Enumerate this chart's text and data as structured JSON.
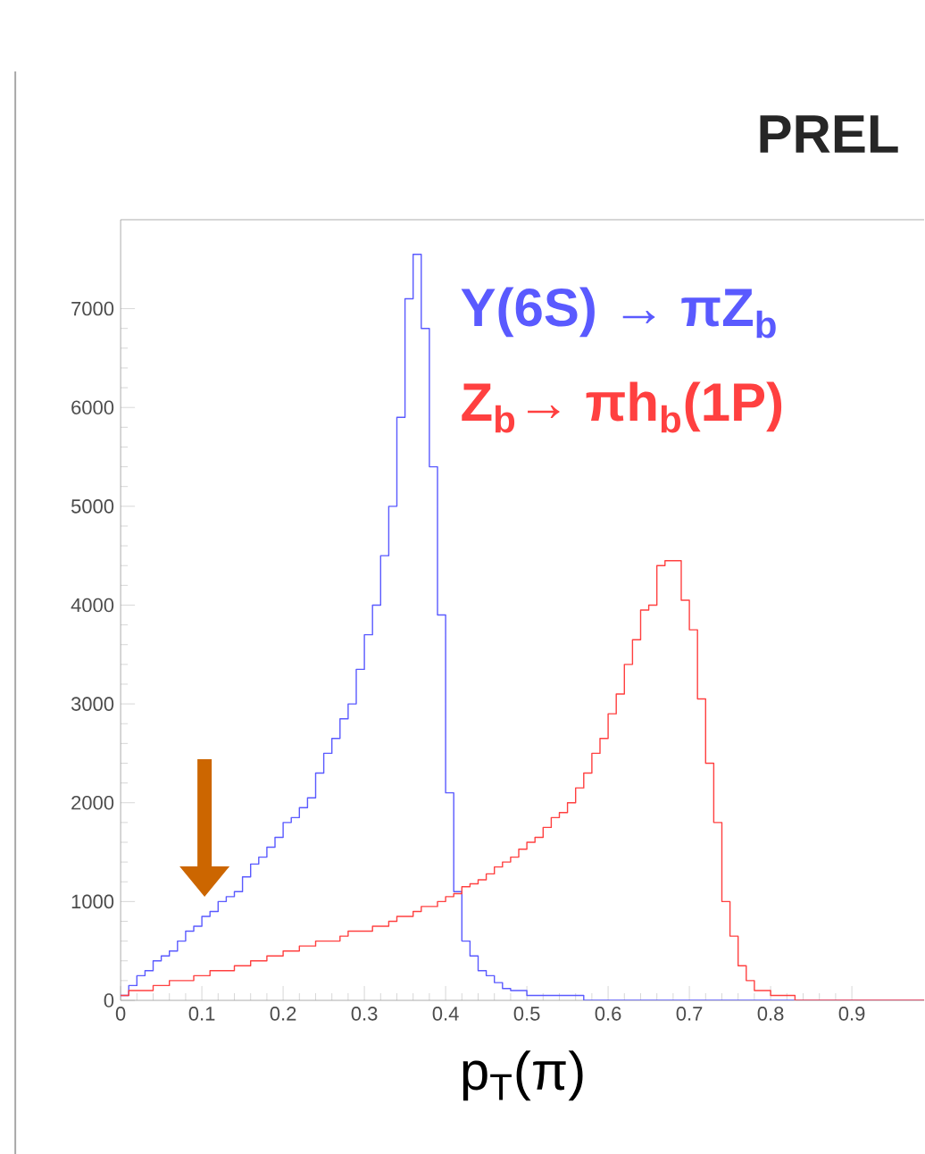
{
  "chart_data": {
    "type": "histogram",
    "bins": [
      0,
      0.01,
      0.02,
      0.03,
      0.04,
      0.05,
      0.06,
      0.07,
      0.08,
      0.09,
      0.1,
      0.11,
      0.12,
      0.13,
      0.14,
      0.15,
      0.16,
      0.17,
      0.18,
      0.19,
      0.2,
      0.21,
      0.22,
      0.23,
      0.24,
      0.25,
      0.26,
      0.27,
      0.28,
      0.29,
      0.3,
      0.31,
      0.32,
      0.33,
      0.34,
      0.35,
      0.36,
      0.37,
      0.38,
      0.39,
      0.4,
      0.41,
      0.42,
      0.43,
      0.44,
      0.45,
      0.46,
      0.47,
      0.48,
      0.49,
      0.5,
      0.51,
      0.52,
      0.53,
      0.54,
      0.55,
      0.56,
      0.57,
      0.58,
      0.59,
      0.6,
      0.61,
      0.62,
      0.63,
      0.64,
      0.65,
      0.66,
      0.67,
      0.68,
      0.69,
      0.7,
      0.71,
      0.72,
      0.73,
      0.74,
      0.75,
      0.76,
      0.77,
      0.78,
      0.79,
      0.8,
      0.81,
      0.82,
      0.83,
      0.84,
      0.85,
      0.86,
      0.87,
      0.88,
      0.89,
      0.9,
      0.91,
      0.92,
      0.93,
      0.94,
      0.95,
      0.96,
      0.97,
      0.98,
      0.99
    ],
    "series": [
      {
        "name": "Υ(6S) → πZ$_{b}$",
        "color": "#5a5aff",
        "values": [
          50,
          150,
          250,
          300,
          400,
          450,
          500,
          600,
          700,
          750,
          850,
          900,
          1000,
          1050,
          1100,
          1250,
          1380,
          1450,
          1550,
          1650,
          1800,
          1850,
          1950,
          2050,
          2300,
          2500,
          2650,
          2850,
          3000,
          3350,
          3700,
          4000,
          4500,
          5000,
          5900,
          7100,
          7550,
          6800,
          5400,
          3900,
          2100,
          1100,
          600,
          450,
          300,
          250,
          180,
          120,
          100,
          100,
          50,
          50,
          50,
          50,
          50,
          50,
          50,
          0,
          0,
          0,
          0,
          0,
          0,
          0,
          0,
          0,
          0,
          0,
          0,
          0,
          0,
          0,
          0,
          0,
          0,
          0,
          0,
          0,
          0,
          0,
          0,
          0,
          0,
          0,
          0,
          0,
          0,
          0,
          0,
          0,
          0,
          0,
          0,
          0,
          0,
          0,
          0,
          0,
          0
        ]
      },
      {
        "name": "Z$_{b}$→ πh$_{b}$(1P)",
        "color": "#ff4040",
        "values": [
          50,
          100,
          100,
          100,
          150,
          150,
          200,
          200,
          200,
          250,
          250,
          300,
          300,
          300,
          350,
          350,
          400,
          400,
          450,
          450,
          500,
          500,
          550,
          550,
          600,
          600,
          600,
          650,
          700,
          700,
          700,
          750,
          750,
          800,
          850,
          850,
          900,
          950,
          950,
          1000,
          1050,
          1080,
          1150,
          1180,
          1220,
          1280,
          1350,
          1400,
          1450,
          1530,
          1600,
          1650,
          1750,
          1850,
          1900,
          2000,
          2150,
          2300,
          2500,
          2650,
          2900,
          3100,
          3400,
          3650,
          3950,
          4000,
          4400,
          4450,
          4450,
          4050,
          3750,
          3050,
          2400,
          1800,
          1000,
          650,
          350,
          200,
          100,
          100,
          50,
          50,
          50,
          0,
          0,
          0,
          0,
          0,
          0,
          0,
          0,
          0,
          0,
          0,
          0,
          0,
          0,
          0,
          0
        ]
      }
    ],
    "xlabel": "p$_{T}$(π)",
    "xlim": [
      0,
      0.99
    ],
    "ylim": [
      0,
      7900
    ],
    "xticks": [
      0,
      0.1,
      0.2,
      0.3,
      0.4,
      0.5,
      0.6,
      0.7,
      0.8,
      0.9
    ],
    "yticks": [
      0,
      1000,
      2000,
      3000,
      4000,
      5000,
      6000,
      7000
    ],
    "annotations": [
      "PREL"
    ]
  }
}
